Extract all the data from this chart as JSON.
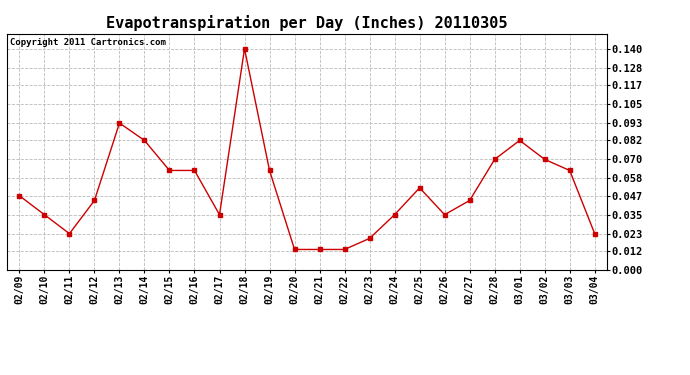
{
  "title": "Evapotranspiration per Day (Inches) 20110305",
  "copyright": "Copyright 2011 Cartronics.com",
  "dates": [
    "02/09",
    "02/10",
    "02/11",
    "02/12",
    "02/13",
    "02/14",
    "02/15",
    "02/16",
    "02/17",
    "02/18",
    "02/19",
    "02/20",
    "02/21",
    "02/22",
    "02/23",
    "02/24",
    "02/25",
    "02/26",
    "02/27",
    "02/28",
    "03/01",
    "03/02",
    "03/03",
    "03/04"
  ],
  "values": [
    0.047,
    0.035,
    0.023,
    0.044,
    0.093,
    0.082,
    0.063,
    0.063,
    0.035,
    0.14,
    0.063,
    0.013,
    0.013,
    0.013,
    0.02,
    0.035,
    0.052,
    0.035,
    0.044,
    0.07,
    0.082,
    0.07,
    0.063,
    0.023
  ],
  "line_color": "#cc0000",
  "marker": "s",
  "marker_size": 2.5,
  "ylim": [
    0.0,
    0.1495
  ],
  "yticks": [
    0.0,
    0.012,
    0.023,
    0.035,
    0.047,
    0.058,
    0.07,
    0.082,
    0.093,
    0.105,
    0.117,
    0.128,
    0.14
  ],
  "background_color": "#ffffff",
  "grid_color": "#bbbbbb",
  "title_fontsize": 11,
  "copyright_fontsize": 6.5,
  "tick_fontsize": 7,
  "ytick_fontsize": 7.5
}
